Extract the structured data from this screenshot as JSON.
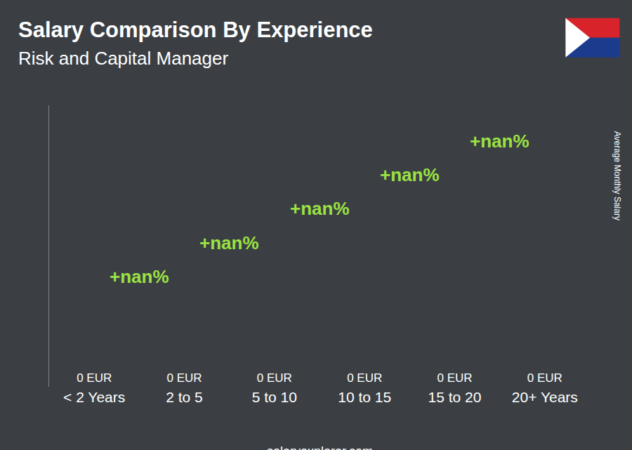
{
  "chart_data": {
    "type": "bar",
    "title": "Salary Comparison By Experience",
    "subtitle": "Risk and Capital Manager",
    "y_label": "Average Monthly Salary",
    "categories": [
      "< 2 Years",
      "2 to 5",
      "5 to 10",
      "10 to 15",
      "15 to 20",
      "20+ Years"
    ],
    "values": [
      0,
      0,
      0,
      0,
      0,
      0
    ],
    "value_labels": [
      "0 EUR",
      "0 EUR",
      "0 EUR",
      "0 EUR",
      "0 EUR",
      "0 EUR"
    ],
    "data_labels": true,
    "annotations": [
      "+nan%",
      "+nan%",
      "+nan%",
      "+nan%",
      "+nan%"
    ],
    "source": "salaryexplorer.com",
    "color": "#27a9ec",
    "ylim": [
      0,
      1
    ],
    "yticks": [],
    "tick_labels": "x",
    "grid": false
  }
}
